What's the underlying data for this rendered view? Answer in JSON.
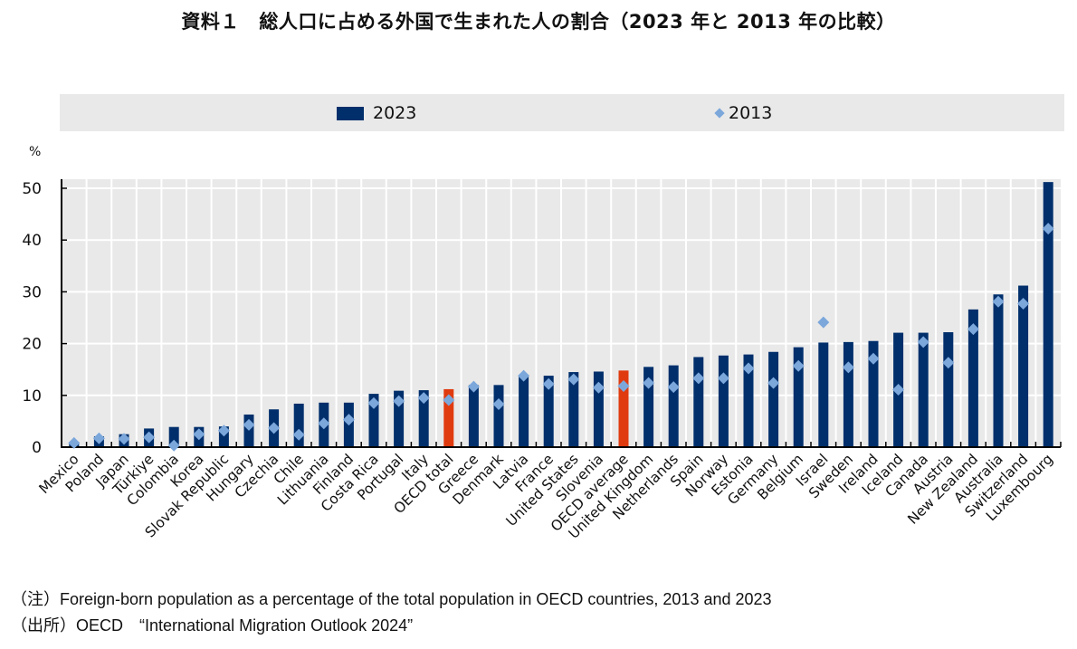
{
  "chart_data": {
    "type": "bar",
    "title": "資料１　総人口に占める外国で生まれた人の割合（2023 年と 2013 年の比較）",
    "xlabel": "",
    "ylabel": "%",
    "ylim": [
      0,
      52
    ],
    "yticks": [
      0,
      10,
      20,
      30,
      40,
      50
    ],
    "grid": true,
    "legend_position": "top",
    "categories": [
      "Mexico",
      "Poland",
      "Japan",
      "Türkiye",
      "Colombia",
      "Korea",
      "Slovak Republic",
      "Hungary",
      "Czechia",
      "Chile",
      "Lithuania",
      "Finland",
      "Costa Rica",
      "Portugal",
      "Italy",
      "OECD total",
      "Greece",
      "Denmark",
      "Latvia",
      "France",
      "United States",
      "Slovenia",
      "OECD average",
      "United Kingdom",
      "Netherlands",
      "Spain",
      "Norway",
      "Estonia",
      "Germany",
      "Belgium",
      "Israel",
      "Sweden",
      "Ireland",
      "Iceland",
      "Canada",
      "Austria",
      "New Zealand",
      "Australia",
      "Switzerland",
      "Luxembourg"
    ],
    "highlight": [
      "OECD total",
      "OECD average"
    ],
    "series": [
      {
        "name": "2023",
        "type": "bar",
        "color": "#002f6c",
        "highlight_color": "#e03a0f",
        "values": [
          1.0,
          2.1,
          2.5,
          3.6,
          3.9,
          3.9,
          4.0,
          6.3,
          7.3,
          8.4,
          8.6,
          8.6,
          10.3,
          10.9,
          11.0,
          11.2,
          12.0,
          12.0,
          13.6,
          13.8,
          14.5,
          14.6,
          14.8,
          15.5,
          15.8,
          17.4,
          17.7,
          17.9,
          18.4,
          19.3,
          20.2,
          20.3,
          20.5,
          22.1,
          22.1,
          22.2,
          26.6,
          29.5,
          31.2,
          51.2
        ]
      },
      {
        "name": "2013",
        "type": "marker",
        "marker": "diamond",
        "color": "#7ba7db",
        "values": [
          0.8,
          1.7,
          1.6,
          1.9,
          0.3,
          2.5,
          3.2,
          4.3,
          3.7,
          2.4,
          4.6,
          5.3,
          8.5,
          8.9,
          9.5,
          9.1,
          11.7,
          8.3,
          13.8,
          12.2,
          13.1,
          11.5,
          11.8,
          12.4,
          11.6,
          13.3,
          13.3,
          15.2,
          12.4,
          15.7,
          24.1,
          15.4,
          17.1,
          11.1,
          20.3,
          16.3,
          22.8,
          28.1,
          27.7,
          42.2
        ]
      }
    ]
  },
  "legend": {
    "bar_label": "2023",
    "marker_label": "2013"
  },
  "unit_label": "%",
  "notes": {
    "note": "（注）Foreign-born population as a percentage of the total population in OECD countries, 2013 and 2023",
    "source": "（出所）OECD　“International Migration Outlook 2024”"
  }
}
